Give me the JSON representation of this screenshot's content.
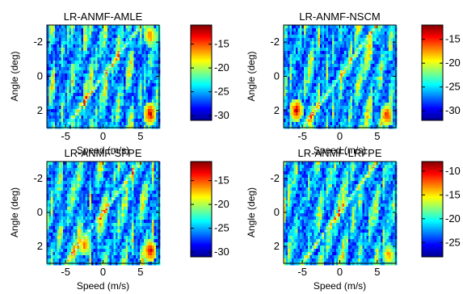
{
  "chart_data": [
    {
      "type": "heatmap",
      "title": "LR-ANMF-AMLE",
      "xlabel": "Speed (m/s)",
      "ylabel": "Angle (deg)",
      "xlim": [
        -7.5,
        7.5
      ],
      "ylim": [
        -3,
        3
      ],
      "y_reversed": true,
      "xticks": [
        -5,
        0,
        5
      ],
      "yticks": [
        -2,
        0,
        2
      ],
      "colorbar": {
        "ticks": [
          -15,
          -20,
          -25,
          -30
        ],
        "range": [
          -31,
          -11
        ],
        "colormap": "jet"
      },
      "clutter_ridge": {
        "from": [
          -5,
          3
        ],
        "to": [
          5,
          -3
        ]
      },
      "hotspots": [
        {
          "x": 6.3,
          "y": 2.2,
          "level": -13
        },
        {
          "x": 6.3,
          "y": -2.4,
          "level": -16
        }
      ]
    },
    {
      "type": "heatmap",
      "title": "LR-ANMF-NSCM",
      "xlabel": "Speed (m/s)",
      "ylabel": "Angle (deg)",
      "xlim": [
        -7.5,
        7.5
      ],
      "ylim": [
        -3,
        3
      ],
      "y_reversed": true,
      "xticks": [
        -5,
        0,
        5
      ],
      "yticks": [
        -2,
        0,
        2
      ],
      "colorbar": {
        "ticks": [
          -15,
          -20,
          -25,
          -30
        ],
        "range": [
          -32,
          -12
        ],
        "colormap": "jet"
      },
      "clutter_ridge": {
        "from": [
          -5,
          3
        ],
        "to": [
          5,
          -3
        ]
      },
      "hotspots": [
        {
          "x": -5.8,
          "y": 2.0,
          "level": -14
        },
        {
          "x": 6.3,
          "y": 2.3,
          "level": -15
        }
      ]
    },
    {
      "type": "heatmap",
      "title": "LR-ANMF-SFPE",
      "xlabel": "Speed (m/s)",
      "ylabel": "Angle (deg)",
      "xlim": [
        -7.5,
        7.5
      ],
      "ylim": [
        -3,
        3
      ],
      "y_reversed": true,
      "xticks": [
        -5,
        0,
        5
      ],
      "yticks": [
        -2,
        0,
        2
      ],
      "colorbar": {
        "ticks": [
          -15,
          -20,
          -25,
          -30
        ],
        "range": [
          -31,
          -11
        ],
        "colormap": "jet"
      },
      "clutter_ridge": {
        "from": [
          -5,
          3
        ],
        "to": [
          5,
          -3
        ]
      },
      "hotspots": [
        {
          "x": 6.3,
          "y": 2.3,
          "level": -13
        },
        {
          "x": -2.5,
          "y": 1.9,
          "level": -16
        }
      ]
    },
    {
      "type": "heatmap",
      "title": "LR-ANMF-LRFPE",
      "xlabel": "Speed (m/s)",
      "ylabel": "Angle (deg)",
      "xlim": [
        -7.5,
        7.5
      ],
      "ylim": [
        -3,
        3
      ],
      "y_reversed": true,
      "xticks": [
        -5,
        0,
        5
      ],
      "yticks": [
        -2,
        0,
        2
      ],
      "colorbar": {
        "ticks": [
          -10,
          -15,
          -20,
          -25
        ],
        "range": [
          -28,
          -8
        ],
        "colormap": "jet"
      },
      "clutter_ridge": {
        "from": [
          -5,
          3
        ],
        "to": [
          5,
          -3
        ]
      },
      "hotspots": [
        {
          "x": 6.5,
          "y": 2.5,
          "level": -14
        }
      ]
    }
  ]
}
